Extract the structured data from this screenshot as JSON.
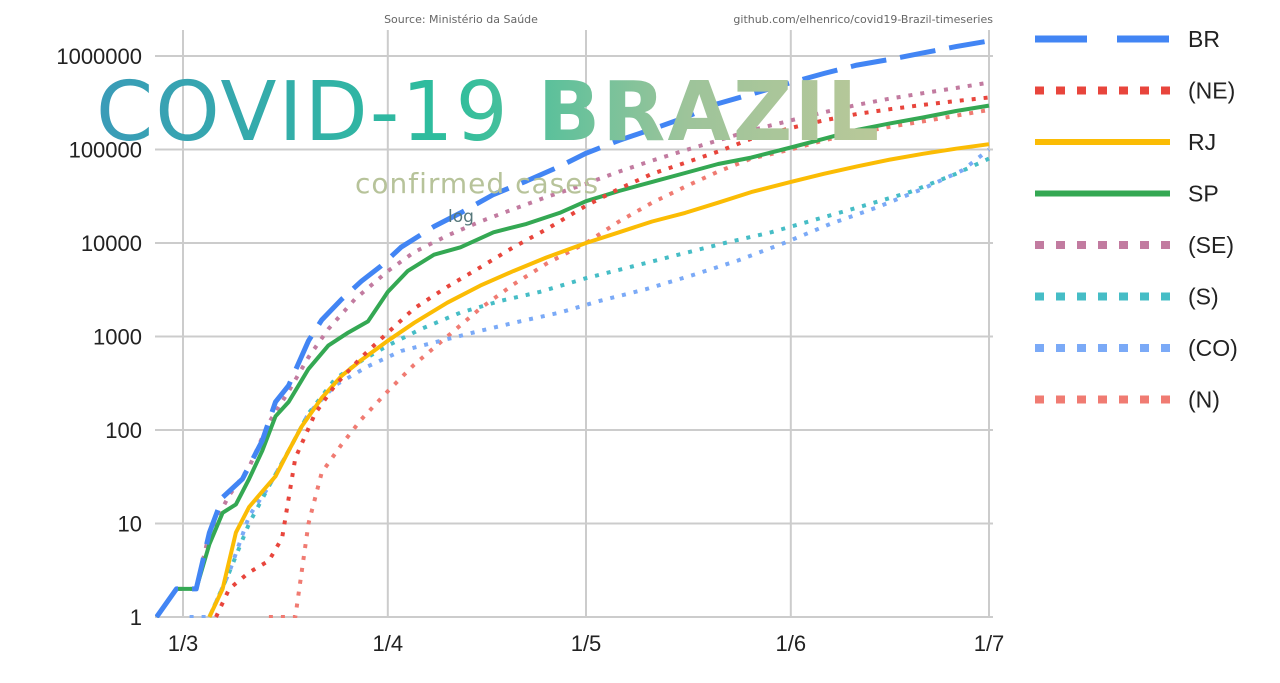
{
  "header": {
    "source": "Source: Ministério da Saúde",
    "repo": "github.com/elhenrico/covid19-Brazil-timeseries"
  },
  "title": {
    "part1": "COVID-19",
    "part2": "BRAZIL",
    "subtitle": "confirmed cases",
    "scale_note": "log"
  },
  "colors": {
    "title_gradient": [
      "#3a9bb8",
      "#2dbe9c",
      "#9dc49a",
      "#b9c899"
    ],
    "subtitle": "#b7c39a",
    "grid": "#cccccc"
  },
  "chart_data": {
    "type": "line",
    "xlabel": "",
    "ylabel": "",
    "y_scale": "log",
    "ylim": [
      1,
      1500000
    ],
    "y_ticks": [
      1,
      10,
      100,
      1000,
      10000,
      100000,
      1000000
    ],
    "y_tick_labels": [
      "1",
      "10",
      "100",
      "1000",
      "10000",
      "100000",
      "1000000"
    ],
    "x_ticks": [
      "2020-03-01",
      "2020-04-01",
      "2020-05-01",
      "2020-06-01",
      "2020-07-01"
    ],
    "x_tick_labels": [
      "1/3",
      "1/4",
      "1/5",
      "1/6",
      "1/7"
    ],
    "xlim": [
      "2020-02-26",
      "2020-07-01"
    ],
    "grid": true,
    "legend_position": "right",
    "series": [
      {
        "name": "BR",
        "color": "#4285f4",
        "style": "dashed",
        "points": [
          [
            "2020-02-26",
            1
          ],
          [
            "2020-02-29",
            2
          ],
          [
            "2020-03-03",
            2
          ],
          [
            "2020-03-05",
            8
          ],
          [
            "2020-03-07",
            19
          ],
          [
            "2020-03-10",
            30
          ],
          [
            "2020-03-13",
            77
          ],
          [
            "2020-03-15",
            200
          ],
          [
            "2020-03-17",
            300
          ],
          [
            "2020-03-20",
            900
          ],
          [
            "2020-03-22",
            1500
          ],
          [
            "2020-03-25",
            2500
          ],
          [
            "2020-03-28",
            3900
          ],
          [
            "2020-03-31",
            5700
          ],
          [
            "2020-04-03",
            9000
          ],
          [
            "2020-04-08",
            15000
          ],
          [
            "2020-04-12",
            21000
          ],
          [
            "2020-04-17",
            33000
          ],
          [
            "2020-04-22",
            46000
          ],
          [
            "2020-04-27",
            66000
          ],
          [
            "2020-05-01",
            91000
          ],
          [
            "2020-05-06",
            125000
          ],
          [
            "2020-05-11",
            165000
          ],
          [
            "2020-05-16",
            220000
          ],
          [
            "2020-05-21",
            310000
          ],
          [
            "2020-05-26",
            390000
          ],
          [
            "2020-06-01",
            520000
          ],
          [
            "2020-06-06",
            650000
          ],
          [
            "2020-06-11",
            800000
          ],
          [
            "2020-06-16",
            920000
          ],
          [
            "2020-06-21",
            1080000
          ],
          [
            "2020-06-26",
            1260000
          ],
          [
            "2020-07-01",
            1450000
          ]
        ]
      },
      {
        "name": "(NE)",
        "color": "#e8453c",
        "style": "dotted",
        "points": [
          [
            "2020-03-06",
            1
          ],
          [
            "2020-03-08",
            2
          ],
          [
            "2020-03-11",
            3
          ],
          [
            "2020-03-14",
            4
          ],
          [
            "2020-03-16",
            7
          ],
          [
            "2020-03-18",
            50
          ],
          [
            "2020-03-21",
            150
          ],
          [
            "2020-03-24",
            300
          ],
          [
            "2020-03-28",
            600
          ],
          [
            "2020-04-01",
            1100
          ],
          [
            "2020-04-05",
            2000
          ],
          [
            "2020-04-10",
            3400
          ],
          [
            "2020-04-15",
            5500
          ],
          [
            "2020-04-20",
            9000
          ],
          [
            "2020-04-25",
            14000
          ],
          [
            "2020-05-01",
            25000
          ],
          [
            "2020-05-06",
            38000
          ],
          [
            "2020-05-11",
            55000
          ],
          [
            "2020-05-16",
            72000
          ],
          [
            "2020-05-21",
            95000
          ],
          [
            "2020-05-26",
            130000
          ],
          [
            "2020-06-01",
            170000
          ],
          [
            "2020-06-06",
            205000
          ],
          [
            "2020-06-11",
            240000
          ],
          [
            "2020-06-16",
            270000
          ],
          [
            "2020-06-21",
            300000
          ],
          [
            "2020-06-26",
            330000
          ],
          [
            "2020-07-01",
            360000
          ]
        ]
      },
      {
        "name": "RJ",
        "color": "#fbbc04",
        "style": "solid",
        "points": [
          [
            "2020-03-05",
            1
          ],
          [
            "2020-03-07",
            2
          ],
          [
            "2020-03-09",
            8
          ],
          [
            "2020-03-11",
            15
          ],
          [
            "2020-03-13",
            22
          ],
          [
            "2020-03-15",
            32
          ],
          [
            "2020-03-17",
            60
          ],
          [
            "2020-03-19",
            110
          ],
          [
            "2020-03-22",
            220
          ],
          [
            "2020-03-25",
            380
          ],
          [
            "2020-03-28",
            560
          ],
          [
            "2020-04-01",
            900
          ],
          [
            "2020-04-05",
            1400
          ],
          [
            "2020-04-10",
            2300
          ],
          [
            "2020-04-15",
            3500
          ],
          [
            "2020-04-20",
            5000
          ],
          [
            "2020-04-25",
            7000
          ],
          [
            "2020-05-01",
            10000
          ],
          [
            "2020-05-06",
            13000
          ],
          [
            "2020-05-11",
            17000
          ],
          [
            "2020-05-16",
            21000
          ],
          [
            "2020-05-21",
            27000
          ],
          [
            "2020-05-26",
            35000
          ],
          [
            "2020-06-01",
            45000
          ],
          [
            "2020-06-06",
            55000
          ],
          [
            "2020-06-11",
            66000
          ],
          [
            "2020-06-16",
            78000
          ],
          [
            "2020-06-21",
            90000
          ],
          [
            "2020-06-26",
            102000
          ],
          [
            "2020-07-01",
            114000
          ]
        ]
      },
      {
        "name": "SP",
        "color": "#34a853",
        "style": "solid",
        "points": [
          [
            "2020-02-26",
            1
          ],
          [
            "2020-02-29",
            2
          ],
          [
            "2020-03-03",
            2
          ],
          [
            "2020-03-05",
            6
          ],
          [
            "2020-03-07",
            13
          ],
          [
            "2020-03-09",
            16
          ],
          [
            "2020-03-11",
            30
          ],
          [
            "2020-03-13",
            60
          ],
          [
            "2020-03-15",
            140
          ],
          [
            "2020-03-17",
            200
          ],
          [
            "2020-03-20",
            450
          ],
          [
            "2020-03-23",
            800
          ],
          [
            "2020-03-26",
            1100
          ],
          [
            "2020-03-29",
            1450
          ],
          [
            "2020-04-01",
            3000
          ],
          [
            "2020-04-04",
            5000
          ],
          [
            "2020-04-08",
            7500
          ],
          [
            "2020-04-12",
            9000
          ],
          [
            "2020-04-17",
            13000
          ],
          [
            "2020-04-22",
            16000
          ],
          [
            "2020-04-27",
            21000
          ],
          [
            "2020-05-01",
            28000
          ],
          [
            "2020-05-06",
            36000
          ],
          [
            "2020-05-11",
            45000
          ],
          [
            "2020-05-16",
            56000
          ],
          [
            "2020-05-21",
            70000
          ],
          [
            "2020-05-26",
            82000
          ],
          [
            "2020-06-01",
            105000
          ],
          [
            "2020-06-06",
            130000
          ],
          [
            "2020-06-11",
            162000
          ],
          [
            "2020-06-16",
            190000
          ],
          [
            "2020-06-21",
            220000
          ],
          [
            "2020-06-26",
            258000
          ],
          [
            "2020-07-01",
            295000
          ]
        ]
      },
      {
        "name": "(SE)",
        "color": "#c27ba0",
        "style": "dotted",
        "points": [
          [
            "2020-02-26",
            1
          ],
          [
            "2020-02-29",
            2
          ],
          [
            "2020-03-03",
            2
          ],
          [
            "2020-03-05",
            8
          ],
          [
            "2020-03-08",
            20
          ],
          [
            "2020-03-11",
            40
          ],
          [
            "2020-03-14",
            120
          ],
          [
            "2020-03-17",
            260
          ],
          [
            "2020-03-20",
            600
          ],
          [
            "2020-03-23",
            1200
          ],
          [
            "2020-03-27",
            2500
          ],
          [
            "2020-04-01",
            5000
          ],
          [
            "2020-04-05",
            8000
          ],
          [
            "2020-04-10",
            12000
          ],
          [
            "2020-04-15",
            17000
          ],
          [
            "2020-04-20",
            23000
          ],
          [
            "2020-04-25",
            31000
          ],
          [
            "2020-05-01",
            43000
          ],
          [
            "2020-05-06",
            58000
          ],
          [
            "2020-05-11",
            76000
          ],
          [
            "2020-05-16",
            98000
          ],
          [
            "2020-05-21",
            125000
          ],
          [
            "2020-05-26",
            160000
          ],
          [
            "2020-06-01",
            205000
          ],
          [
            "2020-06-06",
            250000
          ],
          [
            "2020-06-11",
            300000
          ],
          [
            "2020-06-16",
            350000
          ],
          [
            "2020-06-21",
            400000
          ],
          [
            "2020-06-26",
            455000
          ],
          [
            "2020-07-01",
            520000
          ]
        ]
      },
      {
        "name": "(S)",
        "color": "#46bdc6",
        "style": "dotted",
        "points": [
          [
            "2020-03-05",
            1
          ],
          [
            "2020-03-08",
            3
          ],
          [
            "2020-03-11",
            10
          ],
          [
            "2020-03-14",
            25
          ],
          [
            "2020-03-17",
            60
          ],
          [
            "2020-03-20",
            150
          ],
          [
            "2020-03-24",
            350
          ],
          [
            "2020-03-28",
            550
          ],
          [
            "2020-04-01",
            800
          ],
          [
            "2020-04-06",
            1200
          ],
          [
            "2020-04-12",
            1800
          ],
          [
            "2020-04-18",
            2400
          ],
          [
            "2020-04-24",
            3000
          ],
          [
            "2020-05-01",
            4200
          ],
          [
            "2020-05-08",
            5600
          ],
          [
            "2020-05-15",
            7500
          ],
          [
            "2020-05-22",
            10000
          ],
          [
            "2020-05-29",
            13000
          ],
          [
            "2020-06-05",
            18000
          ],
          [
            "2020-06-12",
            25000
          ],
          [
            "2020-06-19",
            35000
          ],
          [
            "2020-06-26",
            55000
          ],
          [
            "2020-07-01",
            80000
          ]
        ]
      },
      {
        "name": "(CO)",
        "color": "#7baaf7",
        "style": "dotted",
        "points": [
          [
            "2020-03-02",
            1
          ],
          [
            "2020-03-05",
            1
          ],
          [
            "2020-03-08",
            3
          ],
          [
            "2020-03-11",
            12
          ],
          [
            "2020-03-14",
            25
          ],
          [
            "2020-03-17",
            60
          ],
          [
            "2020-03-20",
            150
          ],
          [
            "2020-03-24",
            300
          ],
          [
            "2020-03-29",
            480
          ],
          [
            "2020-04-03",
            700
          ],
          [
            "2020-04-09",
            900
          ],
          [
            "2020-04-15",
            1150
          ],
          [
            "2020-04-21",
            1450
          ],
          [
            "2020-04-27",
            1800
          ],
          [
            "2020-05-03",
            2400
          ],
          [
            "2020-05-10",
            3200
          ],
          [
            "2020-05-17",
            4500
          ],
          [
            "2020-05-24",
            6500
          ],
          [
            "2020-05-31",
            10000
          ],
          [
            "2020-06-07",
            16000
          ],
          [
            "2020-06-14",
            24000
          ],
          [
            "2020-06-21",
            38000
          ],
          [
            "2020-06-27",
            60000
          ],
          [
            "2020-07-01",
            100000
          ]
        ]
      },
      {
        "name": "(N)",
        "color": "#f07b72",
        "style": "dotted",
        "points": [
          [
            "2020-03-14",
            1
          ],
          [
            "2020-03-18",
            1
          ],
          [
            "2020-03-20",
            10
          ],
          [
            "2020-03-22",
            35
          ],
          [
            "2020-03-25",
            70
          ],
          [
            "2020-03-28",
            130
          ],
          [
            "2020-04-01",
            260
          ],
          [
            "2020-04-05",
            500
          ],
          [
            "2020-04-10",
            1000
          ],
          [
            "2020-04-15",
            2000
          ],
          [
            "2020-04-20",
            3600
          ],
          [
            "2020-04-25",
            6000
          ],
          [
            "2020-05-01",
            10000
          ],
          [
            "2020-05-06",
            17000
          ],
          [
            "2020-05-11",
            27000
          ],
          [
            "2020-05-16",
            40000
          ],
          [
            "2020-05-21",
            58000
          ],
          [
            "2020-05-26",
            80000
          ],
          [
            "2020-06-01",
            100000
          ],
          [
            "2020-06-06",
            125000
          ],
          [
            "2020-06-11",
            150000
          ],
          [
            "2020-06-16",
            175000
          ],
          [
            "2020-06-21",
            200000
          ],
          [
            "2020-06-26",
            230000
          ],
          [
            "2020-07-01",
            265000
          ]
        ]
      }
    ]
  }
}
